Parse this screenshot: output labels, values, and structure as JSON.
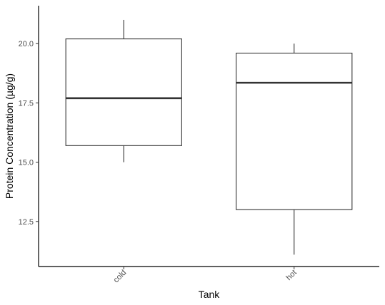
{
  "chart_data": {
    "type": "box",
    "xlabel": "Tank",
    "ylabel": "Protein Concentration (µg/g)",
    "ylim": [
      10.6,
      21.6
    ],
    "yticks": [
      12.5,
      15.0,
      17.5,
      20.0
    ],
    "ytick_labels": [
      "12.5",
      "15.0",
      "17.5",
      "20.0"
    ],
    "categories": [
      "cold",
      "hot"
    ],
    "boxes": [
      {
        "category": "cold",
        "min": 15.0,
        "q1": 15.7,
        "median": 17.7,
        "q3": 20.2,
        "max": 21.0
      },
      {
        "category": "hot",
        "min": 11.1,
        "q1": 13.0,
        "median": 18.35,
        "q3": 19.6,
        "max": 20.0
      }
    ],
    "grid": false,
    "legend": "none",
    "colors": {
      "box_fill": "#ffffff",
      "box_line": "#333333",
      "axis_line": "#000000"
    }
  }
}
